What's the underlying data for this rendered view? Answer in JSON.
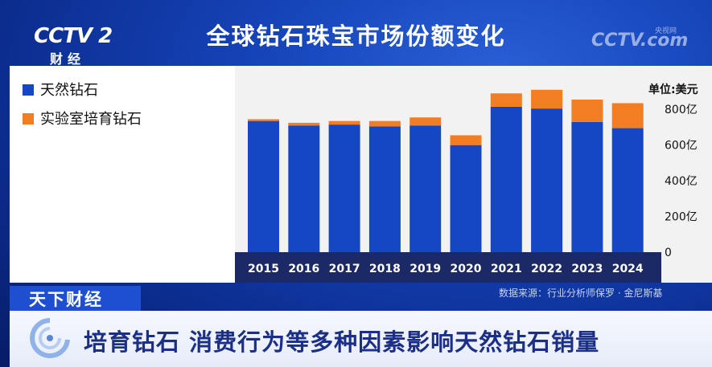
{
  "header": {
    "title": "全球钻石珠宝市场份额变化",
    "logo_left_text": "CCTV 2",
    "logo_left_sub": "财经",
    "logo_right_text": "CCTV.com",
    "logo_right_sub": "央视网"
  },
  "footer": {
    "source": "数据来源：行业分析师保罗 · 金尼斯基",
    "tag": "天下财经",
    "caption": "培育钻石 消费行为等多种因素影响天然钻石销量"
  },
  "colors": {
    "natural": "#1546c4",
    "lab": "#f27d23"
  },
  "chart_data": {
    "type": "bar",
    "stacked": true,
    "unit_label": "单位:美元",
    "categories": [
      "2015",
      "2016",
      "2017",
      "2018",
      "2019",
      "2020",
      "2021",
      "2022",
      "2023",
      "2024"
    ],
    "series": [
      {
        "name": "天然钻石",
        "values": [
          735,
          710,
          715,
          705,
          710,
          600,
          815,
          805,
          730,
          695
        ]
      },
      {
        "name": "实验室培育钻石",
        "values": [
          10,
          15,
          20,
          30,
          45,
          55,
          75,
          105,
          125,
          140
        ]
      }
    ],
    "ylim": [
      0,
      900
    ],
    "yticks": [
      "0",
      "200亿",
      "400亿",
      "600亿",
      "800亿"
    ],
    "ytick_values": [
      0,
      200,
      400,
      600,
      800
    ],
    "legend": "left panel"
  }
}
